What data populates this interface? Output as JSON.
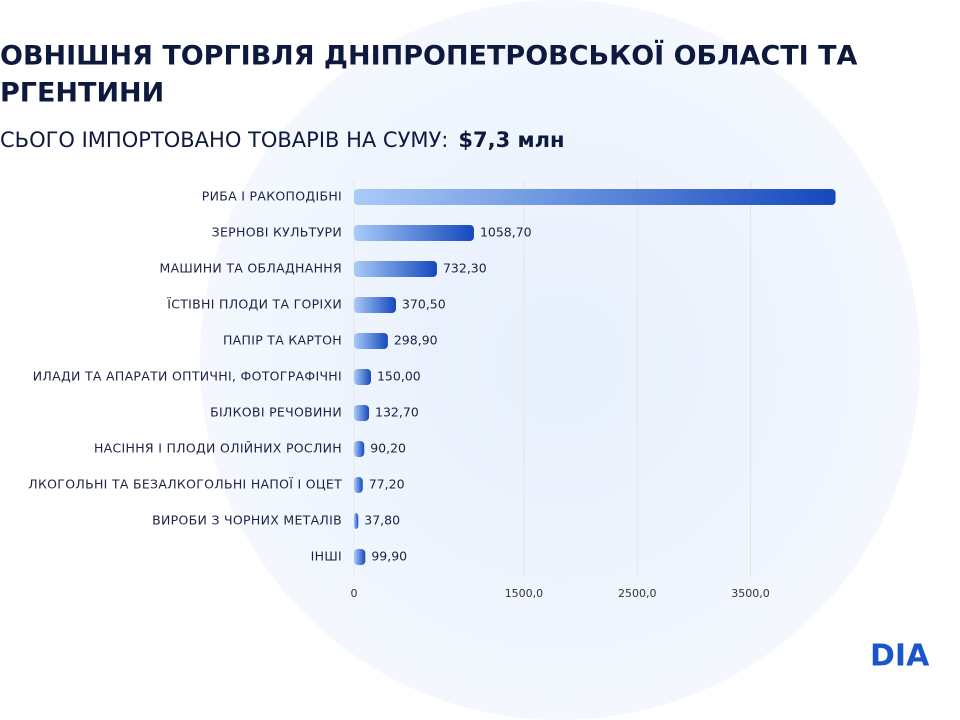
{
  "chart_data": {
    "type": "bar",
    "orientation": "horizontal",
    "title_lines": [
      "ОВНІШНЯ ТОРГІВЛЯ ДНІПРОПЕТРОВСЬКОЇ ОБЛАСТІ ТА",
      "РГЕНТИНИ"
    ],
    "subtitle": "СЬОГО ІМПОРТОВАНО ТОВАРІВ НА СУМУ:",
    "subtitle_value": "$7,3 млн",
    "categories": [
      "РИБА І РАКОПОДІБНІ",
      "ЗЕРНОВІ КУЛЬТУРИ",
      "МАШИНИ ТА ОБЛАДНАННЯ",
      "ЇСТІВНІ ПЛОДИ ТА ГОРІХИ",
      "ПАПІР ТА КАРТОН",
      "ИЛАДИ ТА АПАРАТИ ОПТИЧНІ, ФОТОГРАФІЧНІ",
      "БІЛКОВІ РЕЧОВИНИ",
      "НАСІННЯ І ПЛОДИ ОЛІЙНИХ РОСЛИН",
      "ЛКОГОЛЬНІ ТА БЕЗАЛКОГОЛЬНІ НАПОЇ І ОЦЕТ",
      "ВИРОБИ З ЧОРНИХ МЕТАЛІВ",
      "ІНШІ"
    ],
    "values": [
      4250,
      1058.7,
      732.3,
      370.5,
      298.9,
      150,
      132.7,
      90.2,
      77.2,
      37.8,
      99.9
    ],
    "value_labels": [
      null,
      "1058,70",
      "732,30",
      "370,50",
      "298,90",
      "150,00",
      "132,70",
      "90,20",
      "77,20",
      "37,80",
      "99,90"
    ],
    "colors": [
      "#a9cbf8",
      "#1548bd"
    ],
    "xlim": [
      0,
      5300
    ],
    "xticks": [
      0,
      {
        "value": 1500,
        "label": "1500,0"
      },
      {
        "value": 2500,
        "label": "2500,0"
      },
      {
        "value": 3500,
        "label": "3500,0"
      }
    ],
    "grid": true
  },
  "logo": "DІA"
}
